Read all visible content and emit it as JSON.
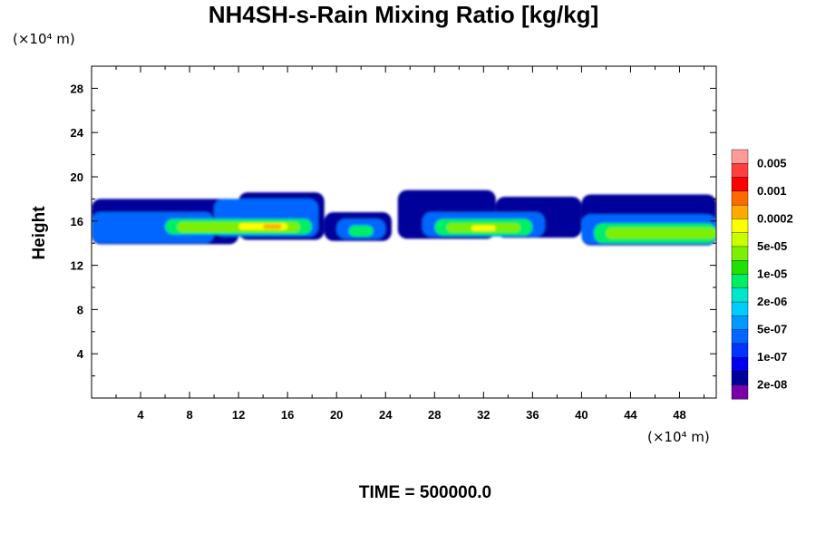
{
  "chart_data": {
    "type": "heatmap",
    "title": "NH4SH-s-Rain Mixing Ratio [kg/kg]",
    "ylabel": "Height",
    "xlabel": "",
    "y_unit_label": "(×10⁴ m)",
    "x_unit_label": "(×10⁴ m)",
    "time_label": "TIME = 500000.0",
    "xlim": [
      0,
      51
    ],
    "ylim": [
      0,
      30
    ],
    "x_ticks": [
      4,
      8,
      12,
      16,
      20,
      24,
      28,
      32,
      36,
      40,
      44,
      48
    ],
    "y_ticks": [
      4,
      8,
      12,
      16,
      20,
      24,
      28
    ],
    "colorbar": {
      "labels": [
        "0.005",
        "0.001",
        "0.0002",
        "5e-05",
        "1e-05",
        "2e-06",
        "5e-07",
        "1e-07",
        "2e-08"
      ],
      "colors_top_to_bottom": [
        "#ff9a9a",
        "#ff4040",
        "#ff0000",
        "#ff6a00",
        "#ffaa00",
        "#ffff00",
        "#c8ff00",
        "#7cf000",
        "#22e000",
        "#00ee66",
        "#00e6cc",
        "#00ccff",
        "#0099ff",
        "#0066ff",
        "#0033ff",
        "#0000ee",
        "#00009a",
        "#7a00aa"
      ]
    },
    "field_layers": [
      {
        "level": 1,
        "segments": [
          [
            0,
            12,
            13.9,
            18.0
          ],
          [
            12,
            19,
            14.3,
            18.6
          ],
          [
            19,
            24.5,
            14.2,
            16.8
          ],
          [
            25,
            33,
            14.4,
            18.8
          ],
          [
            33,
            40,
            14.5,
            18.2
          ],
          [
            40,
            51,
            13.8,
            18.4
          ]
        ]
      },
      {
        "level": 4,
        "segments": [
          [
            0,
            10,
            14.0,
            16.8
          ],
          [
            10,
            18.5,
            14.6,
            18.0
          ],
          [
            20,
            24,
            14.4,
            16.2
          ],
          [
            27,
            37,
            14.6,
            16.8
          ],
          [
            40,
            51,
            13.9,
            16.6
          ]
        ]
      },
      {
        "level": 8,
        "segments": [
          [
            6,
            18,
            14.8,
            16.2
          ],
          [
            21,
            23,
            14.6,
            15.6
          ],
          [
            28,
            36,
            14.7,
            16.2
          ],
          [
            41,
            51,
            14.0,
            15.8
          ]
        ]
      },
      {
        "level": 10,
        "segments": [
          [
            7,
            17,
            15.0,
            15.9
          ],
          [
            29,
            35,
            15.0,
            15.8
          ],
          [
            42,
            51,
            14.4,
            15.4
          ]
        ]
      },
      {
        "level": 12,
        "segments": [
          [
            12,
            16,
            15.2,
            15.8
          ],
          [
            31,
            33,
            15.1,
            15.6
          ]
        ]
      },
      {
        "level": 13,
        "segments": [
          [
            14,
            15.5,
            15.3,
            15.7
          ]
        ]
      }
    ]
  }
}
